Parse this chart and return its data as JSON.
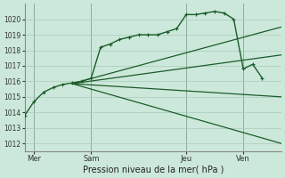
{
  "background_color": "#cce8da",
  "grid_color": "#a8ccbc",
  "line_color": "#1a5c2a",
  "xlabel": "Pression niveau de la mer( hPa )",
  "ylim": [
    1011.5,
    1021.0
  ],
  "yticks": [
    1012,
    1013,
    1014,
    1015,
    1016,
    1017,
    1018,
    1019,
    1020
  ],
  "xlim": [
    0,
    13.5
  ],
  "xtick_labels": [
    "Mer",
    "Sam",
    "Jeu",
    "Ven"
  ],
  "xtick_positions": [
    0.5,
    3.5,
    8.5,
    11.5
  ],
  "vline_positions": [
    0.5,
    3.5,
    8.5,
    11.5
  ],
  "series1_x": [
    0.0,
    0.5,
    1.0,
    1.5,
    2.0,
    2.5,
    3.0,
    3.5,
    4.0,
    4.5,
    5.0,
    5.5,
    6.0,
    6.5,
    7.0,
    7.5,
    8.0,
    8.5,
    9.0,
    9.5,
    10.0,
    10.5,
    11.0,
    11.5,
    12.0,
    12.5
  ],
  "series1_y": [
    1013.8,
    1014.7,
    1015.3,
    1015.6,
    1015.8,
    1015.9,
    1016.0,
    1016.2,
    1018.2,
    1018.4,
    1018.7,
    1018.85,
    1019.0,
    1019.0,
    1019.0,
    1019.2,
    1019.4,
    1020.3,
    1020.3,
    1020.4,
    1020.5,
    1020.4,
    1020.0,
    1016.8,
    1017.1,
    1016.2
  ],
  "series2_x": [
    2.5,
    13.5
  ],
  "series2_y": [
    1015.85,
    1012.0
  ],
  "series3_x": [
    2.5,
    13.5
  ],
  "series3_y": [
    1015.85,
    1015.0
  ],
  "series4_x": [
    2.5,
    13.5
  ],
  "series4_y": [
    1015.85,
    1017.7
  ],
  "series5_x": [
    2.5,
    13.5
  ],
  "series5_y": [
    1015.85,
    1019.5
  ]
}
